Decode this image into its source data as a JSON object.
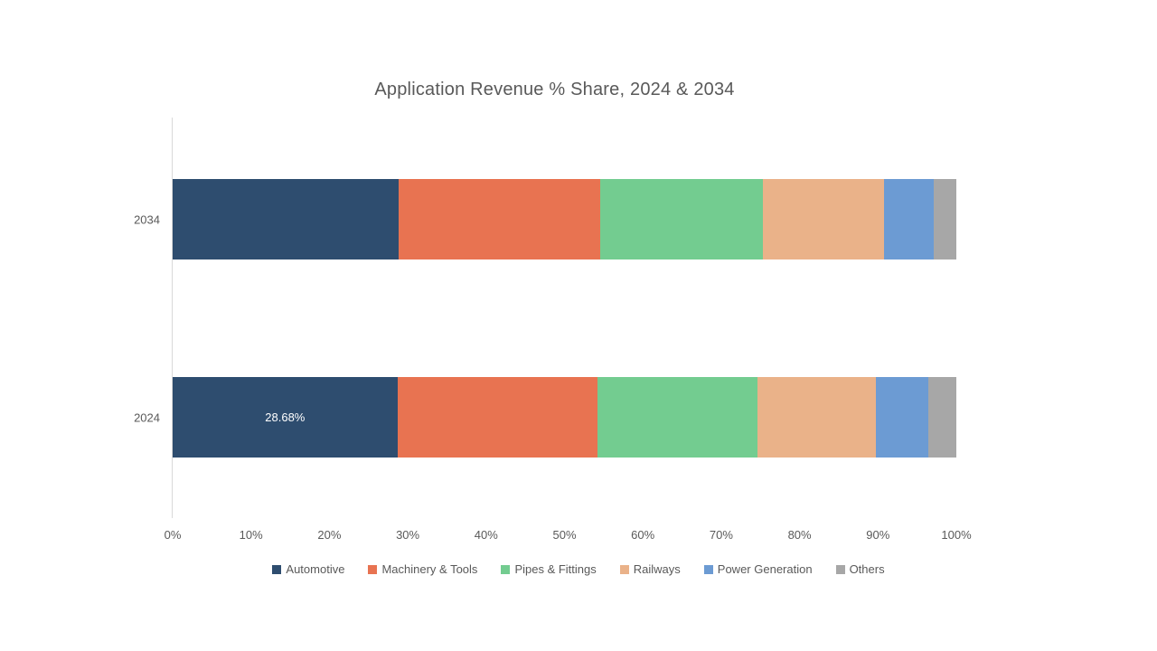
{
  "chart_data": {
    "type": "bar",
    "orientation": "horizontal",
    "stacked": true,
    "title": "Application Revenue % Share, 2024 & 2034",
    "categories": [
      "2034",
      "2024"
    ],
    "series": [
      {
        "name": "Automotive",
        "color": "#2E4D6F",
        "values": [
          28.8,
          28.68
        ]
      },
      {
        "name": "Machinery & Tools",
        "color": "#E87351",
        "values": [
          25.7,
          25.5
        ]
      },
      {
        "name": "Pipes & Fittings",
        "color": "#73CC90",
        "values": [
          20.8,
          20.42
        ]
      },
      {
        "name": "Railways",
        "color": "#EAB289",
        "values": [
          15.5,
          15.11
        ]
      },
      {
        "name": "Power Generation",
        "color": "#6C9BD3",
        "values": [
          6.3,
          6.69
        ]
      },
      {
        "name": "Others",
        "color": "#A7A7A7",
        "values": [
          2.9,
          3.6
        ]
      }
    ],
    "data_labels": [
      {
        "category_index": 1,
        "series_index": 0,
        "text": "28.68%"
      }
    ],
    "x_ticks": [
      "0%",
      "10%",
      "20%",
      "30%",
      "40%",
      "50%",
      "60%",
      "70%",
      "80%",
      "90%",
      "100%"
    ],
    "xlim": [
      0,
      100
    ],
    "grid": false,
    "legend_position": "bottom",
    "text_color": "#595959",
    "axis_line_color": "#D9D9D9",
    "background_color": "#FFFFFF"
  }
}
